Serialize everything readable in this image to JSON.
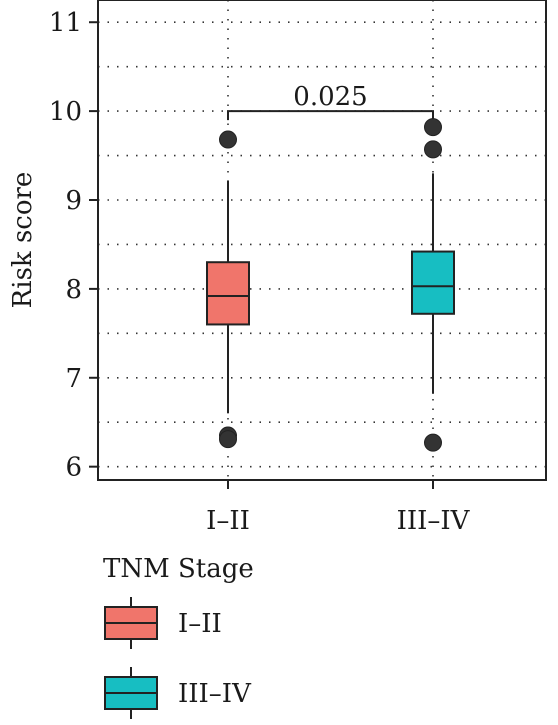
{
  "chart_data": {
    "type": "boxplot",
    "ylabel": "Risk score",
    "xlabel": "",
    "ylim": [
      5.85,
      11.25
    ],
    "yticks": [
      "6",
      "7",
      "8",
      "9",
      "10",
      "11"
    ],
    "categories": [
      "I–II",
      "III–IV"
    ],
    "boxes": [
      {
        "name": "I–II",
        "color": "#F0756B",
        "whisker_low": 6.6,
        "q1": 7.6,
        "median": 7.92,
        "q3": 8.3,
        "whisker_high": 9.22,
        "outliers": [
          9.68,
          6.35,
          6.31
        ]
      },
      {
        "name": "III–IV",
        "color": "#17BEC2",
        "whisker_low": 6.82,
        "q1": 7.72,
        "median": 8.03,
        "q3": 8.42,
        "whisker_high": 9.3,
        "outliers": [
          9.82,
          9.57,
          6.27
        ]
      }
    ],
    "comparison": {
      "label": "0.025",
      "y": 10.0
    },
    "grid": true,
    "legend": {
      "title": "TNM Stage",
      "entries": [
        "I–II",
        "III–IV"
      ],
      "placement": "bottom"
    }
  }
}
